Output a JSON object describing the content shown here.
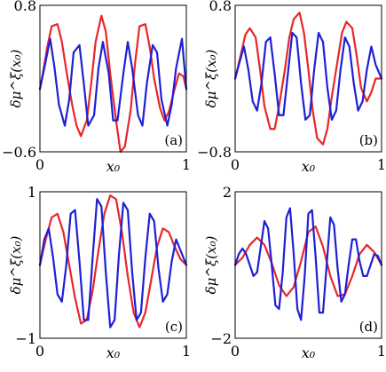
{
  "chart_data": [
    {
      "type": "line",
      "panel_label": "(a)",
      "xlabel": "x₀",
      "ylabel": "δμ^ξ(x₀)",
      "xlim": [
        0,
        1
      ],
      "ylim": [
        -0.6,
        0.8
      ],
      "x_ticks": [
        "0",
        "1"
      ],
      "x_tick_values": [
        0,
        1
      ],
      "y_ticks": [
        "0.8",
        "−0.6"
      ],
      "y_tick_values": [
        0.8,
        -0.6
      ],
      "series": [
        {
          "color": "#e8262a",
          "x": [
            0,
            0.02,
            0.05,
            0.08,
            0.12,
            0.15,
            0.18,
            0.22,
            0.25,
            0.28,
            0.32,
            0.35,
            0.38,
            0.42,
            0.45,
            0.48,
            0.52,
            0.55,
            0.58,
            0.62,
            0.65,
            0.68,
            0.72,
            0.75,
            0.78,
            0.82,
            0.85,
            0.88,
            0.92,
            0.95,
            0.98,
            1
          ],
          "y": [
            0,
            0.15,
            0.4,
            0.6,
            0.62,
            0.45,
            0.18,
            -0.15,
            -0.35,
            -0.45,
            -0.3,
            0.05,
            0.45,
            0.7,
            0.55,
            0.15,
            -0.3,
            -0.6,
            -0.55,
            -0.2,
            0.25,
            0.6,
            0.62,
            0.4,
            0.1,
            -0.18,
            -0.3,
            -0.22,
            0,
            0.15,
            0.12,
            0
          ]
        },
        {
          "color": "#1f1fd6",
          "x": [
            0,
            0.03,
            0.07,
            0.1,
            0.13,
            0.17,
            0.2,
            0.23,
            0.27,
            0.3,
            0.33,
            0.37,
            0.4,
            0.43,
            0.47,
            0.5,
            0.53,
            0.57,
            0.6,
            0.63,
            0.67,
            0.7,
            0.73,
            0.77,
            0.8,
            0.83,
            0.87,
            0.9,
            0.93,
            0.97,
            1
          ],
          "y": [
            0,
            0.2,
            0.48,
            0.2,
            -0.15,
            -0.35,
            -0.1,
            0.35,
            0.42,
            0.05,
            -0.35,
            -0.25,
            0.2,
            0.45,
            0.15,
            -0.3,
            -0.3,
            0.15,
            0.45,
            0.2,
            -0.25,
            -0.35,
            0.05,
            0.42,
            0.35,
            -0.1,
            -0.35,
            -0.15,
            0.2,
            0.48,
            0
          ]
        }
      ]
    },
    {
      "type": "line",
      "panel_label": "(b)",
      "xlabel": "x₀",
      "ylabel": "δμ^ξ(x₀)",
      "xlim": [
        0,
        1
      ],
      "ylim": [
        -0.8,
        0.8
      ],
      "x_ticks": [
        "0",
        "1"
      ],
      "x_tick_values": [
        0,
        1
      ],
      "y_ticks": [
        "0.8",
        "−0.8"
      ],
      "y_tick_values": [
        0.8,
        -0.8
      ],
      "series": [
        {
          "color": "#e8262a",
          "x": [
            0,
            0.03,
            0.07,
            0.1,
            0.14,
            0.17,
            0.2,
            0.24,
            0.27,
            0.3,
            0.34,
            0.37,
            0.4,
            0.44,
            0.47,
            0.5,
            0.53,
            0.56,
            0.6,
            0.63,
            0.66,
            0.7,
            0.73,
            0.76,
            0.8,
            0.83,
            0.86,
            0.9,
            0.93,
            0.96,
            1
          ],
          "y": [
            0,
            0.2,
            0.48,
            0.55,
            0.45,
            0.1,
            -0.3,
            -0.55,
            -0.55,
            -0.3,
            0.1,
            0.45,
            0.65,
            0.72,
            0.5,
            0.1,
            -0.35,
            -0.65,
            -0.72,
            -0.55,
            -0.2,
            0.2,
            0.5,
            0.62,
            0.55,
            0.25,
            -0.1,
            -0.25,
            -0.15,
            0,
            0
          ]
        },
        {
          "color": "#1f1fd6",
          "x": [
            0,
            0.03,
            0.06,
            0.09,
            0.12,
            0.15,
            0.18,
            0.21,
            0.24,
            0.27,
            0.3,
            0.33,
            0.36,
            0.39,
            0.42,
            0.45,
            0.48,
            0.51,
            0.54,
            0.57,
            0.6,
            0.63,
            0.66,
            0.69,
            0.72,
            0.75,
            0.78,
            0.81,
            0.84,
            0.87,
            0.9,
            0.93,
            0.96,
            1
          ],
          "y": [
            0,
            0.18,
            0.35,
            0.1,
            -0.25,
            -0.35,
            -0.05,
            0.4,
            0.45,
            0.05,
            -0.4,
            -0.4,
            0.05,
            0.5,
            0.45,
            -0.05,
            -0.45,
            -0.4,
            0.1,
            0.5,
            0.4,
            -0.1,
            -0.45,
            -0.35,
            0.1,
            0.45,
            0.35,
            -0.05,
            -0.35,
            -0.25,
            0.1,
            0.35,
            0.15,
            0
          ]
        }
      ]
    },
    {
      "type": "line",
      "panel_label": "(c)",
      "xlabel": "x₀",
      "ylabel": "δμ^ξ(x₀)",
      "xlim": [
        0,
        1
      ],
      "ylim": [
        -1,
        1
      ],
      "x_ticks": [
        "0",
        "1"
      ],
      "x_tick_values": [
        0,
        1
      ],
      "y_ticks": [
        "1",
        "−1"
      ],
      "y_tick_values": [
        1,
        -1
      ],
      "series": [
        {
          "color": "#e8262a",
          "x": [
            0,
            0.04,
            0.08,
            0.12,
            0.16,
            0.2,
            0.24,
            0.28,
            0.32,
            0.36,
            0.4,
            0.44,
            0.48,
            0.52,
            0.56,
            0.6,
            0.64,
            0.68,
            0.72,
            0.76,
            0.8,
            0.84,
            0.88,
            0.92,
            0.96,
            1
          ],
          "y": [
            0,
            0.35,
            0.65,
            0.7,
            0.45,
            0,
            -0.45,
            -0.8,
            -0.75,
            -0.35,
            0.2,
            0.7,
            0.95,
            0.9,
            0.45,
            -0.15,
            -0.65,
            -0.85,
            -0.65,
            -0.2,
            0.25,
            0.5,
            0.45,
            0.25,
            0.08,
            0
          ]
        },
        {
          "color": "#1f1fd6",
          "x": [
            0,
            0.03,
            0.06,
            0.09,
            0.12,
            0.15,
            0.18,
            0.21,
            0.24,
            0.27,
            0.3,
            0.33,
            0.36,
            0.39,
            0.42,
            0.45,
            0.48,
            0.51,
            0.54,
            0.57,
            0.6,
            0.63,
            0.66,
            0.69,
            0.72,
            0.75,
            0.78,
            0.81,
            0.84,
            0.87,
            0.9,
            0.93,
            0.96,
            1
          ],
          "y": [
            0,
            0.35,
            0.5,
            0.1,
            -0.4,
            -0.5,
            0,
            0.7,
            0.75,
            0.05,
            -0.75,
            -0.75,
            0.1,
            0.9,
            0.8,
            -0.1,
            -0.85,
            -0.75,
            0.15,
            0.85,
            0.75,
            -0.1,
            -0.75,
            -0.65,
            0.1,
            0.7,
            0.6,
            -0.05,
            -0.5,
            -0.4,
            0.05,
            0.35,
            0.2,
            0
          ]
        }
      ]
    },
    {
      "type": "line",
      "panel_label": "(d)",
      "xlabel": "x₀",
      "ylabel": "δμ^ξ(x₀)",
      "xlim": [
        0,
        1
      ],
      "ylim": [
        -2,
        2
      ],
      "x_ticks": [
        "0",
        "1"
      ],
      "x_tick_values": [
        0,
        1
      ],
      "y_ticks": [
        "2",
        "−2"
      ],
      "y_tick_values": [
        2,
        -2
      ],
      "series": [
        {
          "color": "#e8262a",
          "x": [
            0,
            0.05,
            0.1,
            0.15,
            0.2,
            0.25,
            0.3,
            0.35,
            0.4,
            0.45,
            0.5,
            0.55,
            0.6,
            0.65,
            0.7,
            0.75,
            0.8,
            0.85,
            0.9,
            0.95,
            1
          ],
          "y": [
            0,
            0.2,
            0.55,
            0.75,
            0.55,
            0.05,
            -0.55,
            -0.85,
            -0.6,
            0.1,
            0.9,
            1.05,
            0.5,
            -0.3,
            -0.85,
            -0.8,
            -0.3,
            0.3,
            0.55,
            0.35,
            0
          ]
        },
        {
          "color": "#1f1fd6",
          "x": [
            0,
            0.025,
            0.05,
            0.075,
            0.1,
            0.125,
            0.15,
            0.175,
            0.2,
            0.225,
            0.25,
            0.275,
            0.3,
            0.325,
            0.35,
            0.375,
            0.4,
            0.425,
            0.45,
            0.475,
            0.5,
            0.525,
            0.55,
            0.575,
            0.6,
            0.625,
            0.65,
            0.675,
            0.7,
            0.725,
            0.75,
            0.775,
            0.8,
            0.825,
            0.85,
            0.875,
            0.9,
            0.925,
            0.95,
            0.975,
            1
          ],
          "y": [
            0,
            0.3,
            0.45,
            0.3,
            0,
            -0.3,
            -0.2,
            0.5,
            1.2,
            1.0,
            0,
            -1.1,
            -1.2,
            -0.2,
            1.3,
            1.55,
            0.3,
            -1.2,
            -1.5,
            -0.3,
            1.4,
            1.5,
            0.2,
            -1.3,
            -1.3,
            0,
            1.3,
            1.1,
            -0.1,
            -1.0,
            -0.8,
            0,
            0.7,
            0.7,
            0.1,
            -0.3,
            -0.3,
            0,
            0.3,
            0.25,
            0
          ]
        }
      ]
    }
  ]
}
